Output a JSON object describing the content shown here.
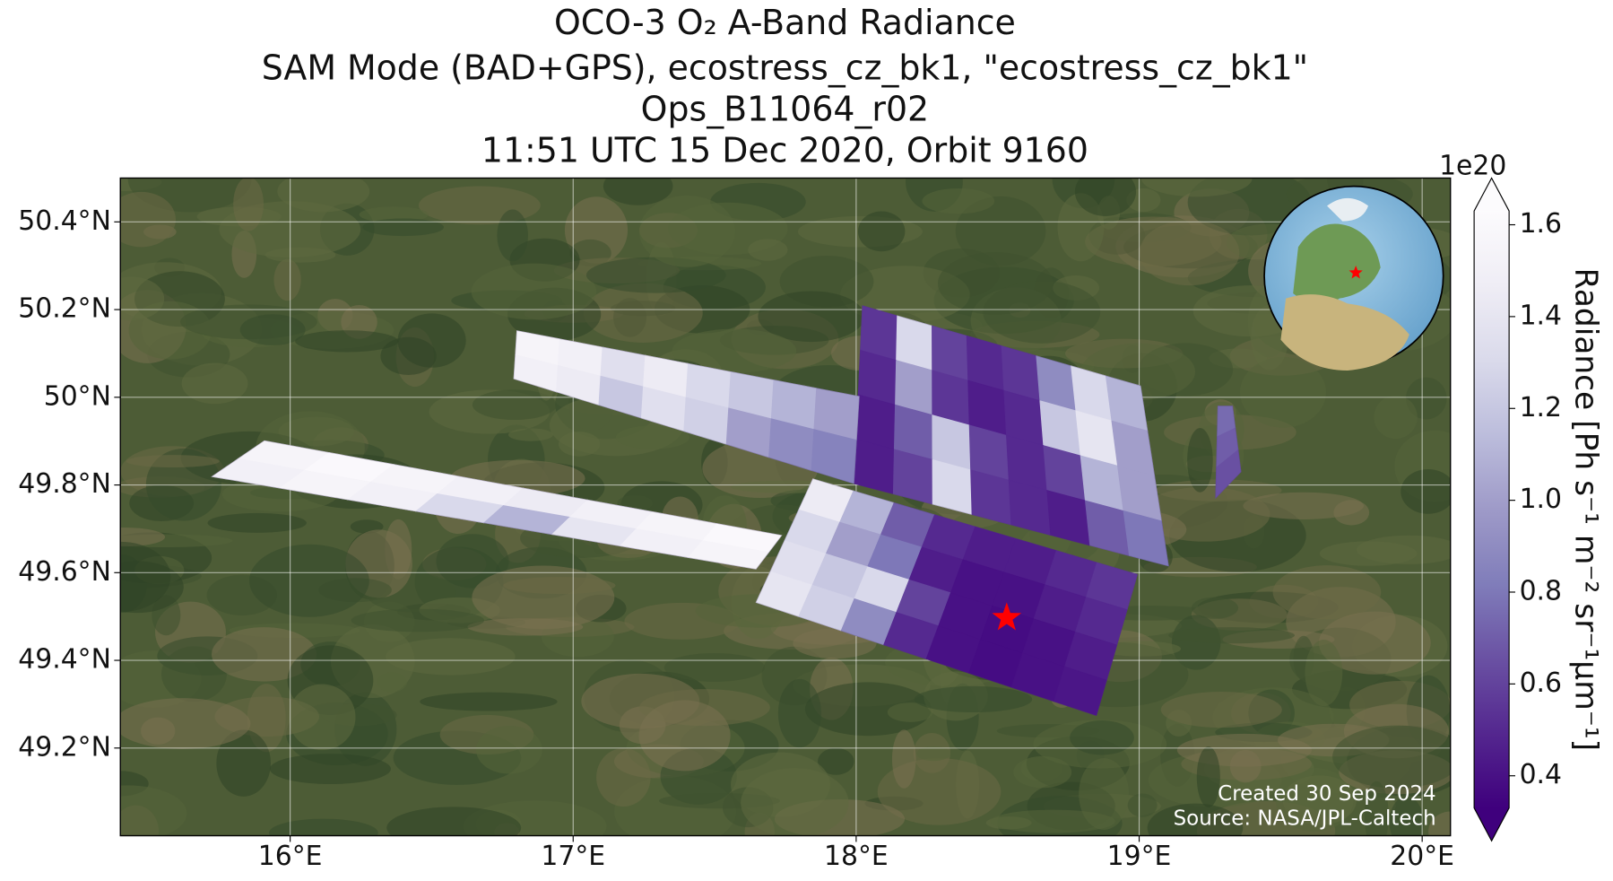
{
  "chart_data": {
    "type": "map",
    "title_lines": [
      "OCO-3 O₂ A-Band Radiance",
      "SAM Mode (BAD+GPS), ecostress_cz_bk1, \"ecostress_cz_bk1\"",
      "Ops_B11064_r02",
      "11:51 UTC 15 Dec 2020, Orbit 9160"
    ],
    "xlim": [
      15.4,
      20.1
    ],
    "ylim": [
      49.0,
      50.5
    ],
    "xticks": [
      {
        "value": 16,
        "label": "16°E"
      },
      {
        "value": 17,
        "label": "17°E"
      },
      {
        "value": 18,
        "label": "18°E"
      },
      {
        "value": 19,
        "label": "19°E"
      },
      {
        "value": 20,
        "label": "20°E"
      }
    ],
    "yticks": [
      {
        "value": 49.2,
        "label": "49.2°N"
      },
      {
        "value": 49.4,
        "label": "49.4°N"
      },
      {
        "value": 49.6,
        "label": "49.6°N"
      },
      {
        "value": 49.8,
        "label": "49.8°N"
      },
      {
        "value": 50,
        "label": "50°N"
      },
      {
        "value": 50.2,
        "label": "50.2°N"
      },
      {
        "value": 50.4,
        "label": "50.4°N"
      }
    ],
    "grid": true,
    "colorbar": {
      "label": "Radiance [Ph s⁻¹ m⁻² sr⁻¹μm⁻¹]",
      "multiplier": "1e20",
      "clim": [
        0.33,
        1.63
      ],
      "ticks": [
        0.4,
        0.6,
        0.8,
        {
          "value": 1,
          "label": "1.0"
        },
        1.2,
        1.4,
        1.6
      ],
      "colormap": [
        "#3f007d",
        "#54278f",
        "#6a51a3",
        "#807dba",
        "#9e9ac8",
        "#bcbddc",
        "#dadaeb",
        "#efedf5",
        "#fcfbfd"
      ]
    },
    "swaths": [
      {
        "corners": [
          [
            15.909,
            49.901
          ],
          [
            17.737,
            49.685
          ],
          [
            17.646,
            49.608
          ],
          [
            15.723,
            49.819
          ]
        ],
        "values": [
          [
            1.55,
            1.6,
            1.55,
            1.5,
            1.45,
            1.5,
            1.55,
            1.6
          ],
          [
            1.5,
            1.55,
            1.5,
            1.3,
            1.1,
            1.4,
            1.5,
            1.55
          ]
        ]
      },
      {
        "corners": [
          [
            17.847,
            49.814
          ],
          [
            18.994,
            49.596
          ],
          [
            18.849,
            49.274
          ],
          [
            17.646,
            49.532
          ]
        ],
        "values": [
          [
            1.45,
            1.1,
            0.7,
            0.5,
            0.45,
            0.45,
            0.5,
            0.55
          ],
          [
            1.3,
            1.0,
            0.8,
            0.45,
            0.4,
            0.4,
            0.45,
            0.5
          ],
          [
            1.35,
            1.2,
            1.3,
            0.6,
            0.4,
            0.38,
            0.4,
            0.45
          ],
          [
            1.4,
            1.25,
            0.9,
            0.5,
            0.4,
            0.38,
            0.4,
            0.42
          ]
        ]
      },
      {
        "corners": [
          [
            18.022,
            50.209
          ],
          [
            19.005,
            50.026
          ],
          [
            19.104,
            49.615
          ],
          [
            17.992,
            49.803
          ]
        ],
        "values": [
          [
            0.55,
            1.3,
            0.6,
            0.5,
            0.55,
            0.9,
            1.3,
            1.1
          ],
          [
            0.5,
            1.0,
            0.55,
            0.45,
            0.5,
            1.2,
            1.4,
            1.0
          ],
          [
            0.45,
            0.7,
            1.2,
            0.6,
            0.5,
            0.6,
            1.1,
            1.0
          ],
          [
            0.45,
            0.6,
            1.3,
            0.55,
            0.5,
            0.45,
            0.7,
            0.8
          ]
        ]
      },
      {
        "corners": [
          [
            16.801,
            50.152
          ],
          [
            18.011,
            50.002
          ],
          [
            17.992,
            49.803
          ],
          [
            16.79,
            50.042
          ]
        ],
        "values": [
          [
            1.55,
            1.5,
            1.35,
            1.45,
            1.3,
            1.2,
            1.1,
            1.0
          ],
          [
            1.5,
            1.45,
            1.2,
            1.35,
            1.25,
            1.0,
            0.9,
            0.85
          ]
        ]
      },
      {
        "corners": [
          [
            19.278,
            49.98
          ],
          [
            19.33,
            49.98
          ],
          [
            19.36,
            49.83
          ],
          [
            19.27,
            49.77
          ]
        ],
        "values": [
          [
            0.75
          ],
          [
            0.7
          ],
          [
            0.65
          ]
        ]
      }
    ],
    "target": {
      "lon": 18.532,
      "lat": 49.497,
      "color": "#ff0000"
    },
    "notes": [
      "Created 30 Sep 2024",
      "Source: NASA/JPL-Caltech"
    ]
  }
}
